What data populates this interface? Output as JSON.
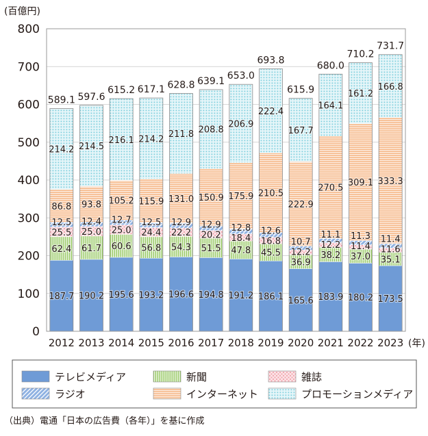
{
  "chart_data": {
    "type": "bar",
    "stacked": true,
    "unit_label": "(百億円)",
    "x_unit_label": "(年)",
    "source_note": "（出典）電通「日本の広告費（各年）」を基に作成",
    "ylim": [
      0,
      800
    ],
    "yticks": [
      "0",
      "100",
      "200",
      "300",
      "400",
      "500",
      "600",
      "700",
      "800"
    ],
    "grid": true,
    "legend_position": "bottom",
    "categories": [
      "2012",
      "2013",
      "2014",
      "2015",
      "2016",
      "2017",
      "2018",
      "2019",
      "2020",
      "2021",
      "2022",
      "2023"
    ],
    "totals": [
      "589.1",
      "597.6",
      "615.2",
      "617.1",
      "628.8",
      "639.1",
      "653.0",
      "693.8",
      "615.9",
      "680.0",
      "710.2",
      "731.7"
    ],
    "series": [
      {
        "name": "テレビメディア",
        "color": "#6f9bd6",
        "pattern": "solid",
        "values": [
          187.7,
          190.2,
          195.6,
          193.2,
          196.6,
          194.8,
          191.2,
          186.1,
          165.6,
          183.9,
          180.2,
          173.5
        ],
        "labels": [
          "187.7",
          "190.2",
          "195.6",
          "193.2",
          "196.6",
          "194.8",
          "191.2",
          "186.1",
          "165.6",
          "183.9",
          "180.2",
          "173.5"
        ]
      },
      {
        "name": "新聞",
        "color": "#9ccb6a",
        "pattern": "vlines",
        "values": [
          62.4,
          61.7,
          60.6,
          56.8,
          54.3,
          51.5,
          47.8,
          45.5,
          36.9,
          38.2,
          37.0,
          35.1
        ],
        "labels": [
          "62.4",
          "61.7",
          "60.6",
          "56.8",
          "54.3",
          "51.5",
          "47.8",
          "45.5",
          "36.9",
          "38.2",
          "37.0",
          "35.1"
        ]
      },
      {
        "name": "雑誌",
        "color": "#f2a3ad",
        "pattern": "dots",
        "values": [
          25.5,
          25.0,
          25.0,
          24.4,
          22.2,
          20.2,
          18.4,
          16.8,
          12.2,
          12.2,
          11.4,
          11.6
        ],
        "labels": [
          "25.5",
          "25.0",
          "25.0",
          "24.4",
          "22.2",
          "20.2",
          "18.4",
          "16.8",
          "12.2",
          "12.2",
          "11.4",
          "11.6"
        ]
      },
      {
        "name": "ラジオ",
        "color": "#8fb2e2",
        "pattern": "diag",
        "values": [
          12.5,
          12.4,
          12.7,
          12.5,
          12.9,
          12.9,
          12.8,
          12.6,
          10.7,
          11.1,
          11.3,
          11.4
        ],
        "labels": [
          "12.5",
          "12.4",
          "12.7",
          "12.5",
          "12.9",
          "12.9",
          "12.8",
          "12.6",
          "10.7",
          "11.1",
          "11.3",
          "11.4"
        ]
      },
      {
        "name": "インターネット",
        "color": "#f6b98a",
        "pattern": "hlines",
        "values": [
          86.8,
          93.8,
          105.2,
          115.9,
          131.0,
          150.9,
          175.9,
          210.5,
          222.9,
          270.5,
          309.1,
          333.3
        ],
        "labels": [
          "86.8",
          "93.8",
          "105.2",
          "115.9",
          "131.0",
          "150.9",
          "175.9",
          "210.5",
          "222.9",
          "270.5",
          "309.1",
          "333.3"
        ]
      },
      {
        "name": "プロモーションメディア",
        "color": "#7fd0de",
        "pattern": "grid",
        "values": [
          214.2,
          214.5,
          216.1,
          214.2,
          211.8,
          208.8,
          206.9,
          222.4,
          167.7,
          164.1,
          161.2,
          166.8
        ],
        "labels": [
          "214.2",
          "214.5",
          "216.1",
          "214.2",
          "211.8",
          "208.8",
          "206.9",
          "222.4",
          "167.7",
          "164.1",
          "161.2",
          "166.8"
        ]
      }
    ],
    "legend_order": [
      "テレビメディア",
      "新聞",
      "雑誌",
      "ラジオ",
      "インターネット",
      "プロモーションメディア"
    ]
  }
}
